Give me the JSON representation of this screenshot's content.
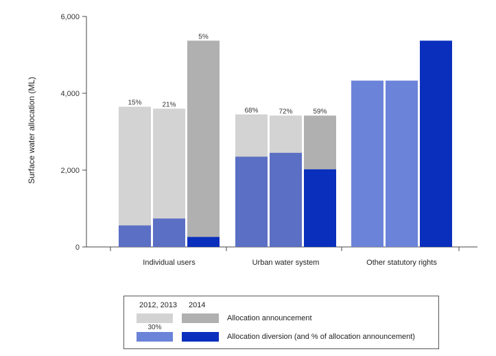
{
  "chart_data": {
    "type": "bar",
    "ylabel": "Surface water allocation (ML)",
    "ylim": [
      0,
      6000
    ],
    "yticks": [
      0,
      2000,
      4000,
      6000
    ],
    "ytick_labels": [
      "0",
      "2,000",
      "4,000",
      "6,000"
    ],
    "categories": [
      "Individual users",
      "Urban water system",
      "Other statutory rights"
    ],
    "groups": [
      {
        "category": "Individual users",
        "bars": [
          {
            "series": "2012, 2013",
            "announcement": 3650,
            "diversion": 560,
            "pct": "15%"
          },
          {
            "series": "2012, 2013",
            "announcement": 3600,
            "diversion": 740,
            "pct": "21%"
          },
          {
            "series": "2014",
            "announcement": 5370,
            "diversion": 260,
            "pct": "5%"
          }
        ]
      },
      {
        "category": "Urban water system",
        "bars": [
          {
            "series": "2012, 2013",
            "announcement": 3450,
            "diversion": 2350,
            "pct": "68%"
          },
          {
            "series": "2012, 2013",
            "announcement": 3420,
            "diversion": 2450,
            "pct": "72%"
          },
          {
            "series": "2014",
            "announcement": 3420,
            "diversion": 2020,
            "pct": "59%"
          }
        ]
      },
      {
        "category": "Other statutory rights",
        "bars": [
          {
            "series": "2012, 2013",
            "announcement": null,
            "diversion": 4330,
            "pct": ""
          },
          {
            "series": "2012, 2013",
            "announcement": null,
            "diversion": 4330,
            "pct": ""
          },
          {
            "series": "2014",
            "announcement": null,
            "diversion": 5370,
            "pct": ""
          }
        ]
      }
    ],
    "colors": {
      "announcement_2012_2013": "#d3d3d3",
      "announcement_2014": "#b0b0b0",
      "diversion_2012_2013": "#5b6fc4",
      "diversion_other_2012_2013": "#6b83d8",
      "diversion_2014": "#0a2fbd"
    },
    "legend": {
      "col1_header": "2012, 2013",
      "col2_header": "2014",
      "announcement_label": "Allocation announcement",
      "diversion_label": "Allocation diversion (and % of allocation announcement)",
      "example_pct": "30%"
    }
  }
}
